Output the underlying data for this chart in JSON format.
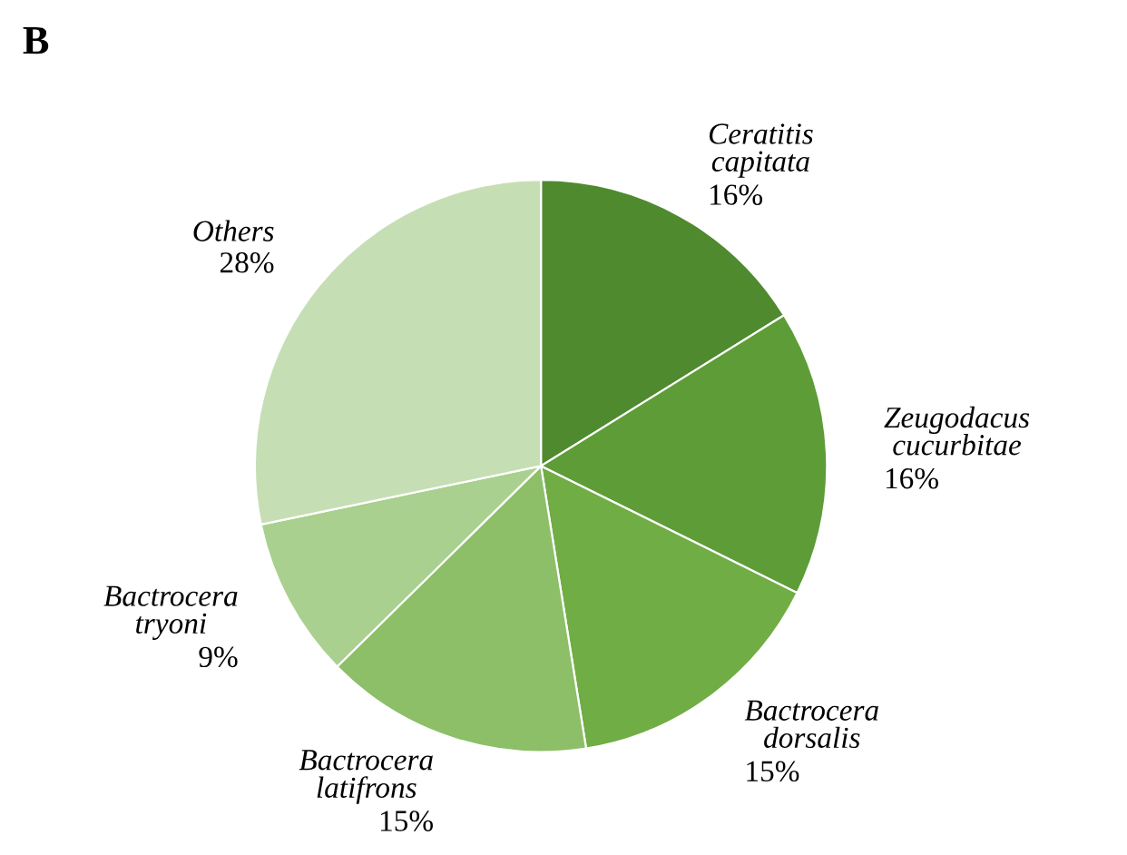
{
  "chart_data": {
    "type": "pie",
    "title": "B",
    "categories": [
      "Ceratitis capitata",
      "Zeugodacus cucurbitae",
      "Bactrocera dorsalis",
      "Bactrocera latifrons",
      "Bactrocera tryoni",
      "Others"
    ],
    "values": [
      16,
      16,
      15,
      15,
      9,
      28
    ],
    "value_labels": [
      "16%",
      "16%",
      "15%",
      "15%",
      "9%",
      "28%"
    ],
    "colors": [
      "#4f8a2f",
      "#5e9c38",
      "#70ad45",
      "#8cbf68",
      "#a9d08e",
      "#c6deb4"
    ],
    "legend": false
  }
}
